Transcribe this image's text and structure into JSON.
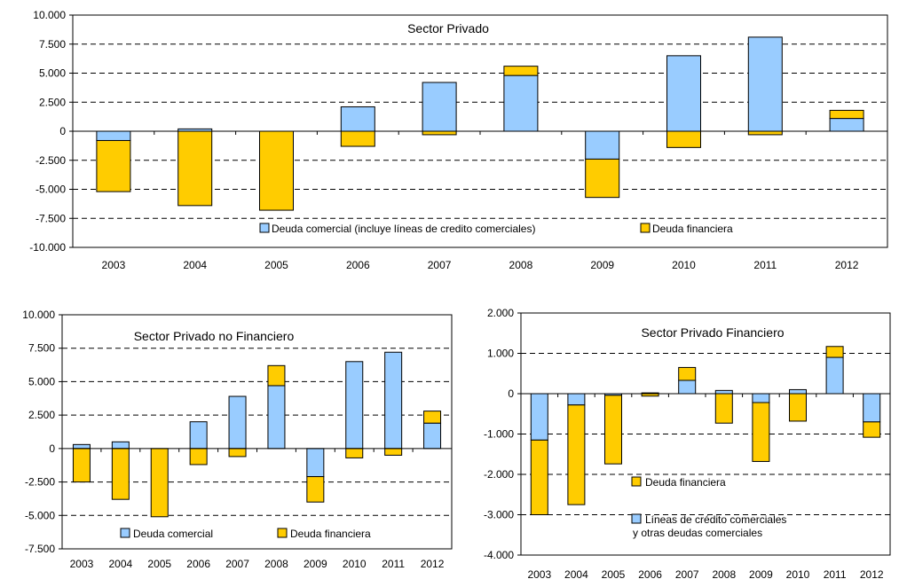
{
  "colors": {
    "commercial": "#99CCFF",
    "financial": "#FFCC00",
    "outline": "#000000",
    "gridline": "#000000"
  },
  "chart_data": [
    {
      "type": "bar",
      "stacked": true,
      "title": "Sector Privado",
      "categories": [
        "2003",
        "2004",
        "2005",
        "2006",
        "2007",
        "2008",
        "2009",
        "2010",
        "2011",
        "2012"
      ],
      "ylim": [
        -10000,
        10000
      ],
      "yticks": [
        -10000,
        -7500,
        -5000,
        -2500,
        0,
        2500,
        5000,
        7500,
        10000
      ],
      "ytick_labels": [
        "-10.000",
        "-7.500",
        "-5.000",
        "-2.500",
        "0",
        "2.500",
        "5.000",
        "7.500",
        "10.000"
      ],
      "grid": "dashed horizontal",
      "legend_position": "bottom-inside",
      "series": [
        {
          "name": "Deuda comercial (incluye líneas de credito comerciales)",
          "color": "#99CCFF",
          "values": [
            -800,
            200,
            0,
            2100,
            4200,
            4800,
            -2400,
            6500,
            8100,
            1100
          ]
        },
        {
          "name": "Deuda financiera",
          "color": "#FFCC00",
          "values": [
            -4400,
            -6400,
            -6800,
            -1300,
            -300,
            800,
            -3300,
            -1400,
            -300,
            700
          ]
        }
      ]
    },
    {
      "type": "bar",
      "stacked": true,
      "title": "Sector Privado no Financiero",
      "categories": [
        "2003",
        "2004",
        "2005",
        "2006",
        "2007",
        "2008",
        "2009",
        "2010",
        "2011",
        "2012"
      ],
      "ylim": [
        -7500,
        10000
      ],
      "yticks": [
        -7500,
        -5000,
        -2500,
        0,
        2500,
        5000,
        7500,
        10000
      ],
      "ytick_labels": [
        "-7.500",
        "-5.000",
        "-2.500",
        "0",
        "2.500",
        "5.000",
        "7.500",
        "10.000"
      ],
      "grid": "dashed horizontal",
      "legend_position": "bottom-inside",
      "series": [
        {
          "name": "Deuda comercial",
          "color": "#99CCFF",
          "values": [
            300,
            500,
            0,
            2000,
            3900,
            4700,
            -2100,
            6500,
            7200,
            1900
          ]
        },
        {
          "name": "Deuda financiera",
          "color": "#FFCC00",
          "values": [
            -2500,
            -3800,
            -5100,
            -1200,
            -600,
            1500,
            -1900,
            -700,
            -500,
            900
          ]
        }
      ]
    },
    {
      "type": "bar",
      "stacked": true,
      "title": "Sector Privado Financiero",
      "categories": [
        "2003",
        "2004",
        "2005",
        "2006",
        "2007",
        "2008",
        "2009",
        "2010",
        "2011",
        "2012"
      ],
      "ylim": [
        -4000,
        2000
      ],
      "yticks": [
        -4000,
        -3000,
        -2000,
        -1000,
        0,
        1000,
        2000
      ],
      "ytick_labels": [
        "-4.000",
        "-3.000",
        "-2.000",
        "-1.000",
        "0",
        "1.000",
        "2.000"
      ],
      "grid": "dashed horizontal",
      "legend_position": "bottom-inside",
      "series": [
        {
          "name": "Líneas de crédito comerciales y otras deudas comerciales",
          "color": "#99CCFF",
          "values": [
            -1150,
            -280,
            -40,
            20,
            330,
            80,
            -220,
            100,
            900,
            -700
          ]
        },
        {
          "name": "Deuda financiera",
          "color": "#FFCC00",
          "values": [
            -1850,
            -2470,
            -1700,
            -60,
            320,
            -730,
            -1460,
            -680,
            270,
            -380
          ]
        }
      ]
    }
  ]
}
